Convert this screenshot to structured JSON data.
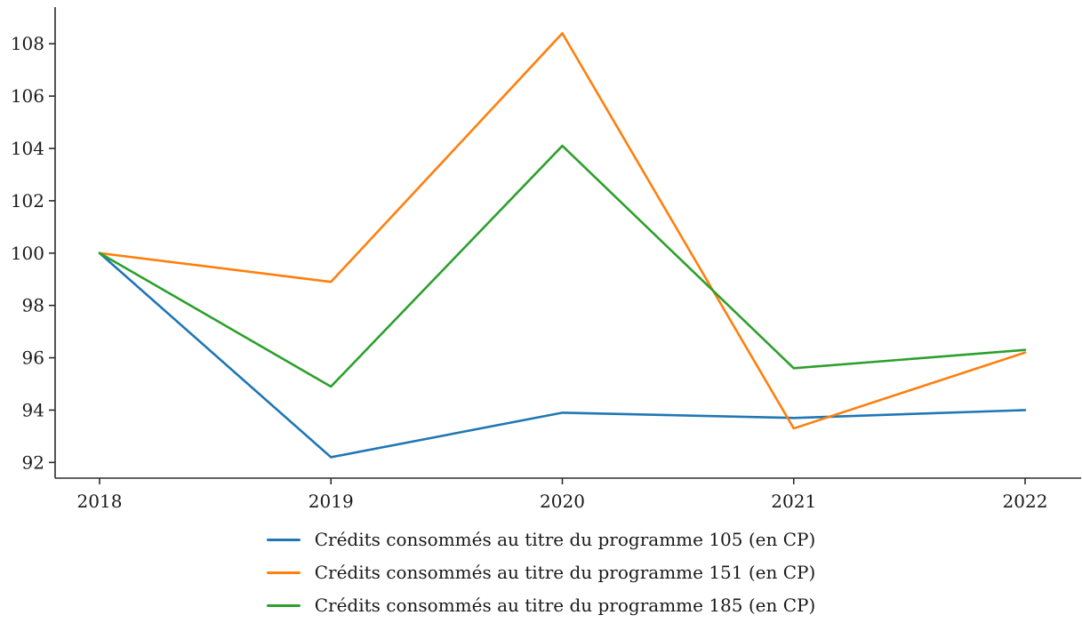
{
  "chart_data": {
    "type": "line",
    "x": [
      2018,
      2019,
      2020,
      2021,
      2022
    ],
    "series": [
      {
        "name": "Crédits consommés au titre du programme 105 (en CP)",
        "color": "#1f77b4",
        "values": [
          100.0,
          92.2,
          93.9,
          93.7,
          94.0
        ]
      },
      {
        "name": "Crédits consommés au titre du programme 151 (en CP)",
        "color": "#ff7f0e",
        "values": [
          100.0,
          98.9,
          108.4,
          93.3,
          96.2
        ]
      },
      {
        "name": "Crédits consommés au titre du programme 185 (en CP)",
        "color": "#2ca02c",
        "values": [
          100.0,
          94.9,
          104.1,
          95.6,
          96.3
        ]
      }
    ],
    "title": "",
    "xlabel": "",
    "ylabel": "",
    "ylim": [
      91.4,
      109.4
    ],
    "yticks": [
      92,
      94,
      96,
      98,
      100,
      102,
      104,
      106,
      108
    ],
    "xticks": [
      "2018",
      "2019",
      "2020",
      "2021",
      "2022"
    ],
    "grid": false,
    "legend_position": "bottom",
    "axis_color": "#2b2b2b",
    "tick_label_color": "#1a1a1a"
  }
}
